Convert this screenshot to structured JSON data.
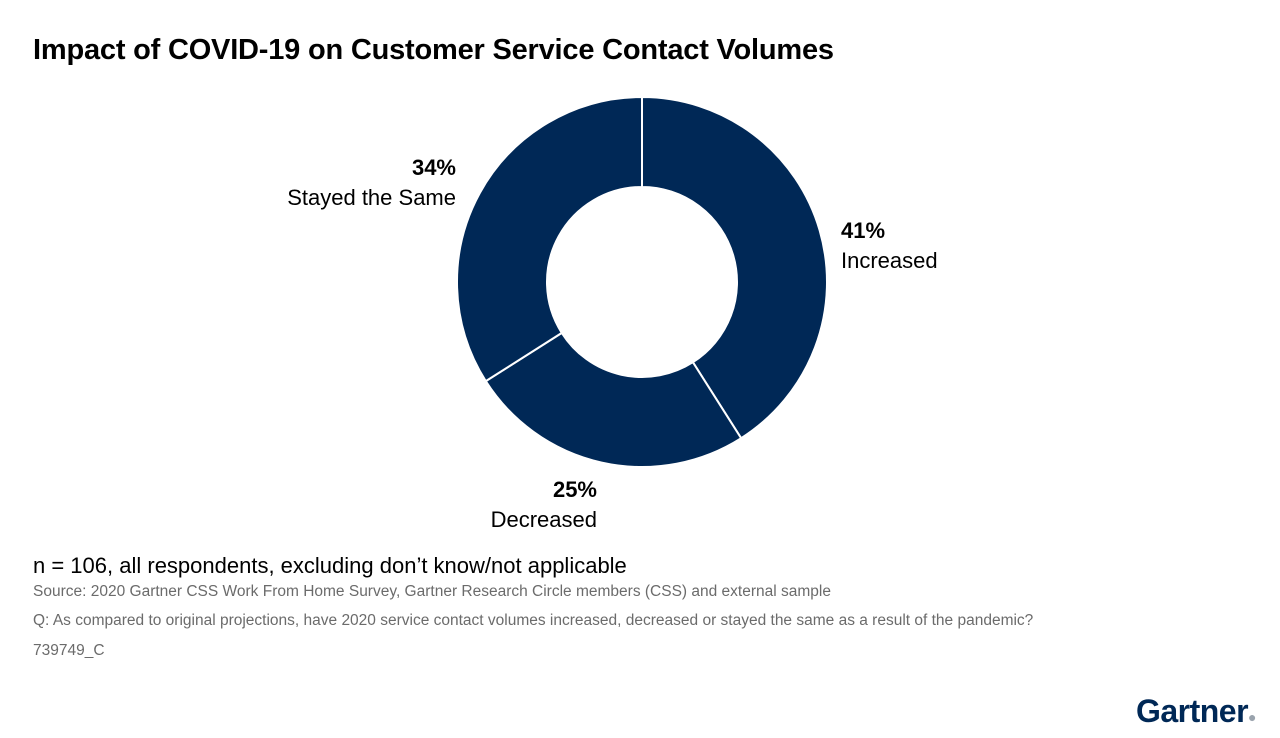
{
  "chart_data": {
    "type": "pie",
    "donut": true,
    "title": "Impact of COVID-19 on Customer Service Contact Volumes",
    "slices": [
      {
        "label": "Increased",
        "value": 41,
        "display": "41%"
      },
      {
        "label": "Decreased",
        "value": 25,
        "display": "25%"
      },
      {
        "label": "Stayed the Same",
        "value": 34,
        "display": "34%"
      }
    ],
    "color": "#002856",
    "legend": "none"
  },
  "notes": {
    "n": "n = 106, all respondents, excluding don’t know/not applicable",
    "source": "Source: 2020 Gartner CSS Work From Home Survey, Gartner Research Circle members (CSS) and external sample",
    "question": "Q: As compared to original projections, have 2020 service contact volumes increased, decreased or stayed the same as a result of the pandemic?",
    "id": "739749_C"
  },
  "logo": "Gartner"
}
